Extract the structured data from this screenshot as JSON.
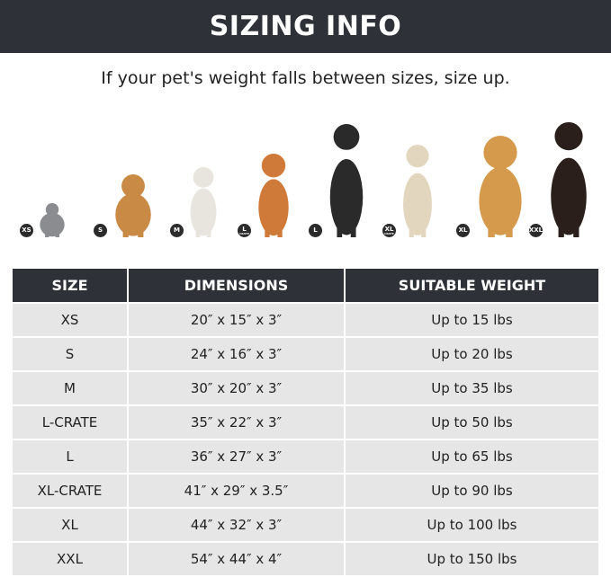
{
  "header": {
    "title": "SIZING INFO"
  },
  "subtitle": "If your pet's weight falls between sizes, size up.",
  "pets": [
    {
      "badge": "XS",
      "sub": "",
      "animal": "cat",
      "color": "#8a8c90"
    },
    {
      "badge": "S",
      "sub": "",
      "animal": "pomeranian",
      "color": "#c98a45"
    },
    {
      "badge": "M",
      "sub": "",
      "animal": "french-bulldog",
      "color": "#e8e4de"
    },
    {
      "badge": "L",
      "sub": "CRATE",
      "animal": "shiba-inu",
      "color": "#d07a3a"
    },
    {
      "badge": "L",
      "sub": "",
      "animal": "border-collie",
      "color": "#2a2a2a"
    },
    {
      "badge": "XL",
      "sub": "CRATE",
      "animal": "labrador",
      "color": "#e3d6bf"
    },
    {
      "badge": "XL",
      "sub": "",
      "animal": "golden-retriever",
      "color": "#d59a4c"
    },
    {
      "badge": "XXL",
      "sub": "",
      "animal": "doberman",
      "color": "#2a1f1a"
    }
  ],
  "table": {
    "headers": [
      "SIZE",
      "DIMENSIONS",
      "SUITABLE WEIGHT"
    ],
    "rows": [
      [
        "XS",
        "20″ x 15″ x 3″",
        "Up to 15 lbs"
      ],
      [
        "S",
        "24″ x 16″ x 3″",
        "Up to 20 lbs"
      ],
      [
        "M",
        "30″ x 20″ x 3″",
        "Up to 35 lbs"
      ],
      [
        "L-CRATE",
        "35″ x 22″ x 3″",
        "Up to 50 lbs"
      ],
      [
        "L",
        "36″ x 27″ x 3″",
        "Up to 65 lbs"
      ],
      [
        "XL-CRATE",
        "41″ x 29″ x 3.5″",
        "Up to 90 lbs"
      ],
      [
        "XL",
        "44″ x 32″ x 3″",
        "Up to 100 lbs"
      ],
      [
        "XXL",
        "54″ x 44″ x 4″",
        "Up to 150 lbs"
      ]
    ]
  }
}
